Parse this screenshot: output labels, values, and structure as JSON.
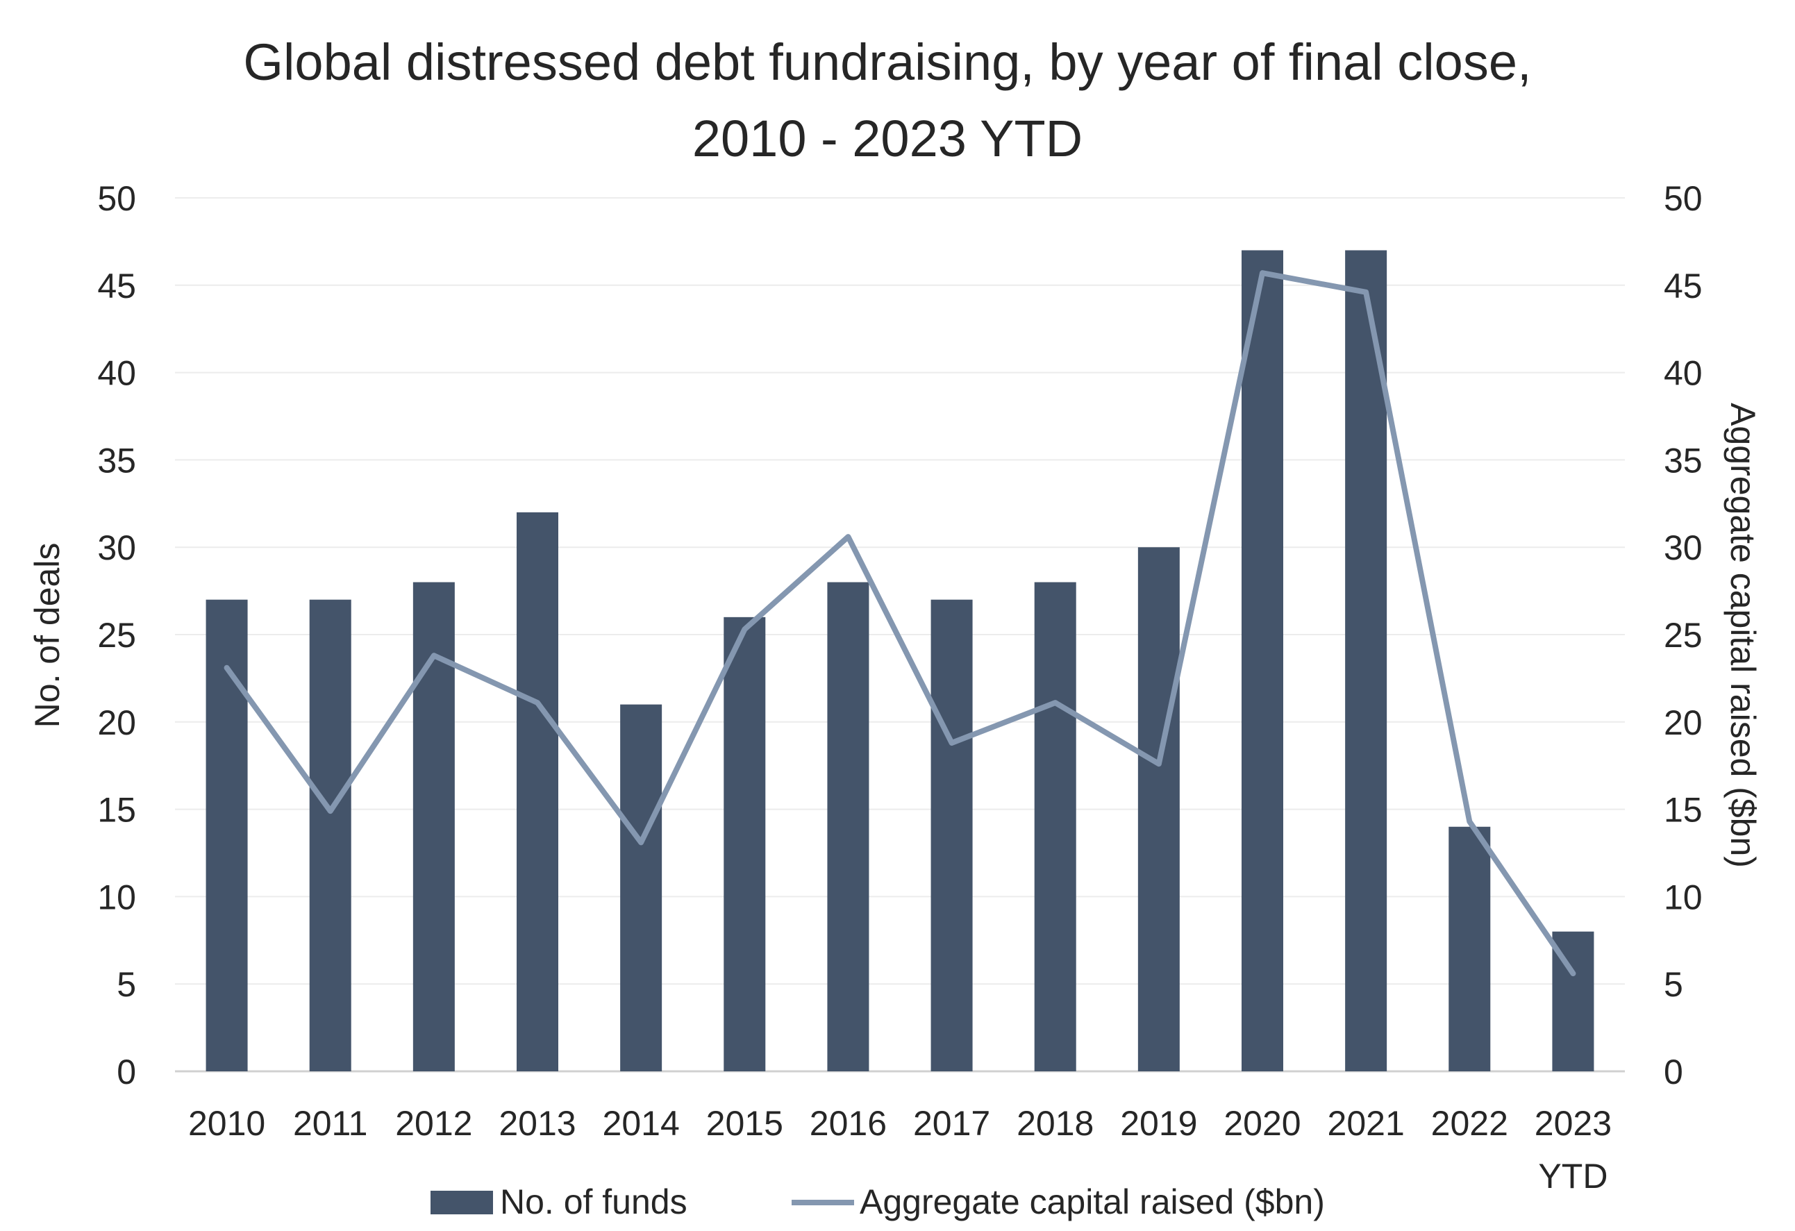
{
  "chart_data": {
    "type": "bar",
    "title_lines": [
      "Global distressed debt fundraising, by year of final close,",
      "2010 - 2023 YTD"
    ],
    "categories": [
      [
        "2010"
      ],
      [
        "2011"
      ],
      [
        "2012"
      ],
      [
        "2013"
      ],
      [
        "2014"
      ],
      [
        "2015"
      ],
      [
        "2016"
      ],
      [
        "2017"
      ],
      [
        "2018"
      ],
      [
        "2019"
      ],
      [
        "2020"
      ],
      [
        "2021"
      ],
      [
        "2022"
      ],
      [
        "2023",
        "YTD"
      ]
    ],
    "ylabel_left": "No. of deals",
    "ylabel_right": "Aggregate capital raised ($bn)",
    "ylim_left": [
      0,
      50
    ],
    "ylim_right": [
      0,
      50
    ],
    "yticks": [
      0,
      5,
      10,
      15,
      20,
      25,
      30,
      35,
      40,
      45,
      50
    ],
    "grid": true,
    "legend_position": "bottom",
    "series": [
      {
        "name": "No. of funds",
        "kind": "bar",
        "axis": "left",
        "color": "#44546a",
        "values": [
          27,
          27,
          28,
          32,
          21,
          26,
          28,
          27,
          28,
          30,
          47,
          47,
          14,
          8
        ]
      },
      {
        "name": "Aggregate capital raised ($bn)",
        "kind": "line",
        "axis": "right",
        "color": "#8497b0",
        "values": [
          23.1,
          14.9,
          23.8,
          21.1,
          13.1,
          25.3,
          30.6,
          18.8,
          21.1,
          17.6,
          45.7,
          44.6,
          14.3,
          5.6
        ]
      }
    ]
  }
}
